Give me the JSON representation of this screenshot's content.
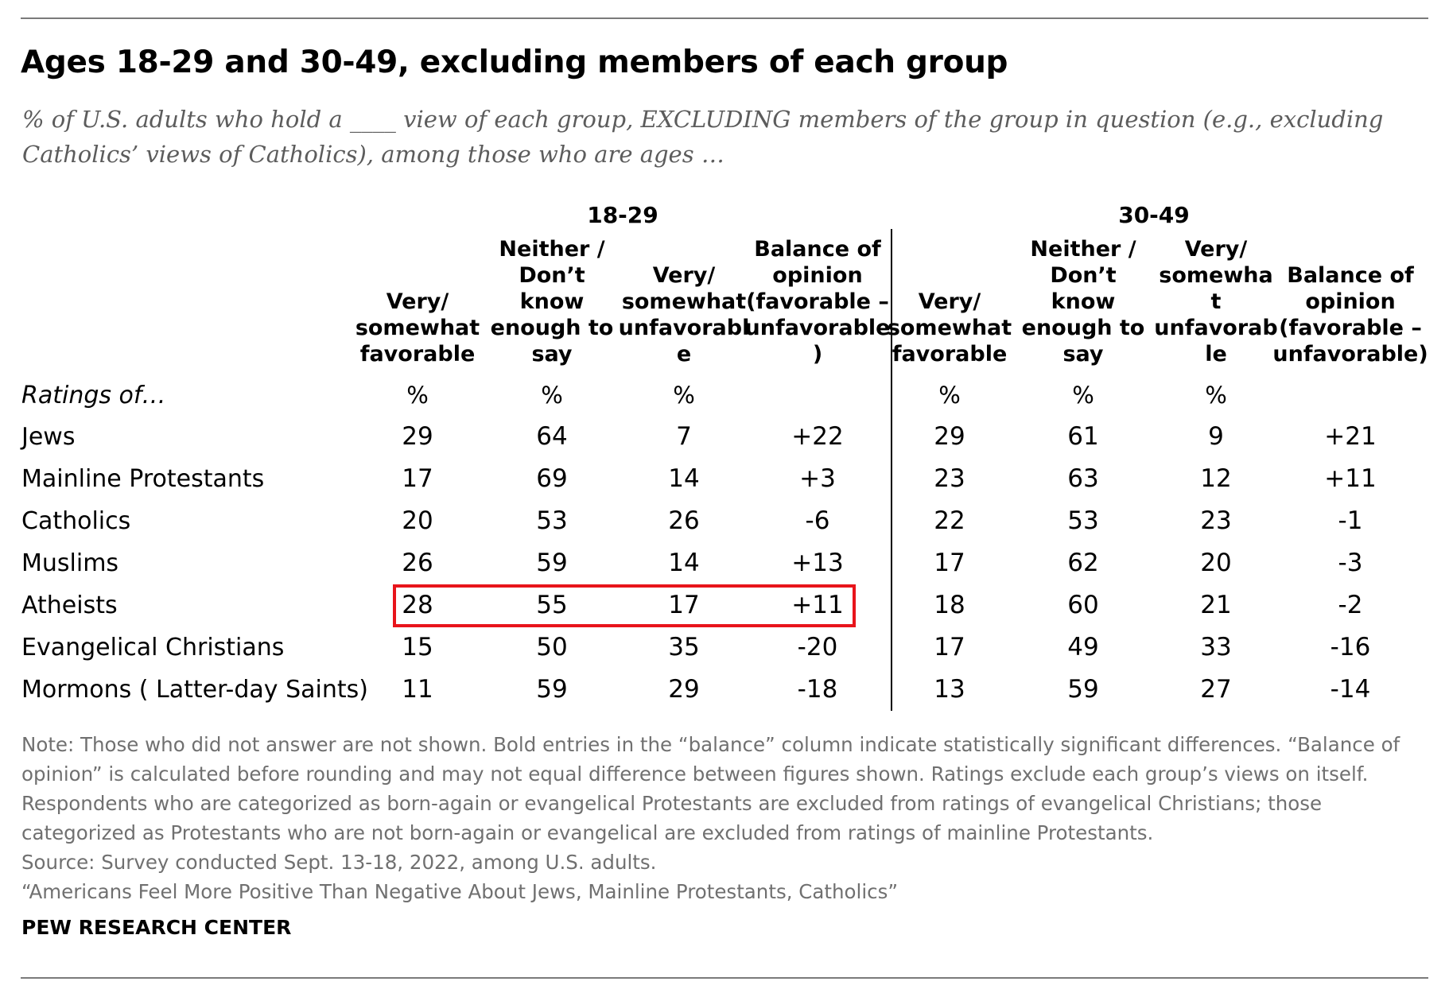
{
  "title": "Ages 18-29 and 30-49, excluding members of each group",
  "subtitle": "% of U.S. adults who hold a ____ view of each group, EXCLUDING members of the group in question (e.g., excluding Catholics’ views of Catholics), among those who are ages …",
  "row_header": "Ratings of…",
  "chart_data": {
    "type": "table",
    "groups": [
      "18-29",
      "30-49"
    ],
    "columns_18_29": [
      "Very/\nsomewhat\nfavorable",
      "Neither /\nDon’t know\nenough to\nsay",
      "Very/\nsomewhat\nunfavorabl\ne",
      "Balance of\nopinion\n(favorable –\nunfavorable\n)"
    ],
    "columns_30_49": [
      "Very/\nsomewhat\nfavorable",
      "Neither /\nDon’t know\nenough to\nsay",
      "Very/\nsomewha\nt\nunfavorab\nle",
      "Balance of\nopinion\n(favorable –\nunfavorable)"
    ],
    "units": [
      "%",
      "%",
      "%",
      "",
      "%",
      "%",
      "%",
      ""
    ],
    "rows": [
      {
        "label": "Jews",
        "values": [
          "29",
          "64",
          "7",
          "+22",
          "29",
          "61",
          "9",
          "+21"
        ]
      },
      {
        "label": "Mainline Protestants",
        "values": [
          "17",
          "69",
          "14",
          "+3",
          "23",
          "63",
          "12",
          "+11"
        ]
      },
      {
        "label": "Catholics",
        "values": [
          "20",
          "53",
          "26",
          "-6",
          "22",
          "53",
          "23",
          "-1"
        ]
      },
      {
        "label": "Muslims",
        "values": [
          "26",
          "59",
          "14",
          "+13",
          "17",
          "62",
          "20",
          "-3"
        ]
      },
      {
        "label": "Atheists",
        "values": [
          "28",
          "55",
          "17",
          "+11",
          "18",
          "60",
          "21",
          "-2"
        ]
      },
      {
        "label": "Evangelical Christians",
        "values": [
          "15",
          "50",
          "35",
          "-20",
          "17",
          "49",
          "33",
          "-16"
        ]
      },
      {
        "label": "Mormons ( Latter-day Saints)",
        "values": [
          "11",
          "59",
          "29",
          "-18",
          "13",
          "59",
          "27",
          "-14"
        ]
      }
    ],
    "highlighted_row": "Atheists",
    "highlight_color": "#e8141b"
  },
  "notes": {
    "note": "Note: Those who did not answer are not shown. Bold entries in the “balance” column indicate statistically significant differences. “Balance of opinion” is calculated before rounding and may not equal difference between figures shown. Ratings exclude each group’s views on itself. Respondents who are categorized as born-again or evangelical Protestants are excluded from ratings of evangelical Christians; those categorized as Protestants who are not born-again or evangelical are excluded from ratings of mainline Protestants.",
    "source": "Source: Survey conducted Sept. 13-18, 2022, among U.S. adults.",
    "report": "“Americans Feel More Positive Than Negative About Jews, Mainline Protestants, Catholics”"
  },
  "brand": "PEW RESEARCH CENTER"
}
